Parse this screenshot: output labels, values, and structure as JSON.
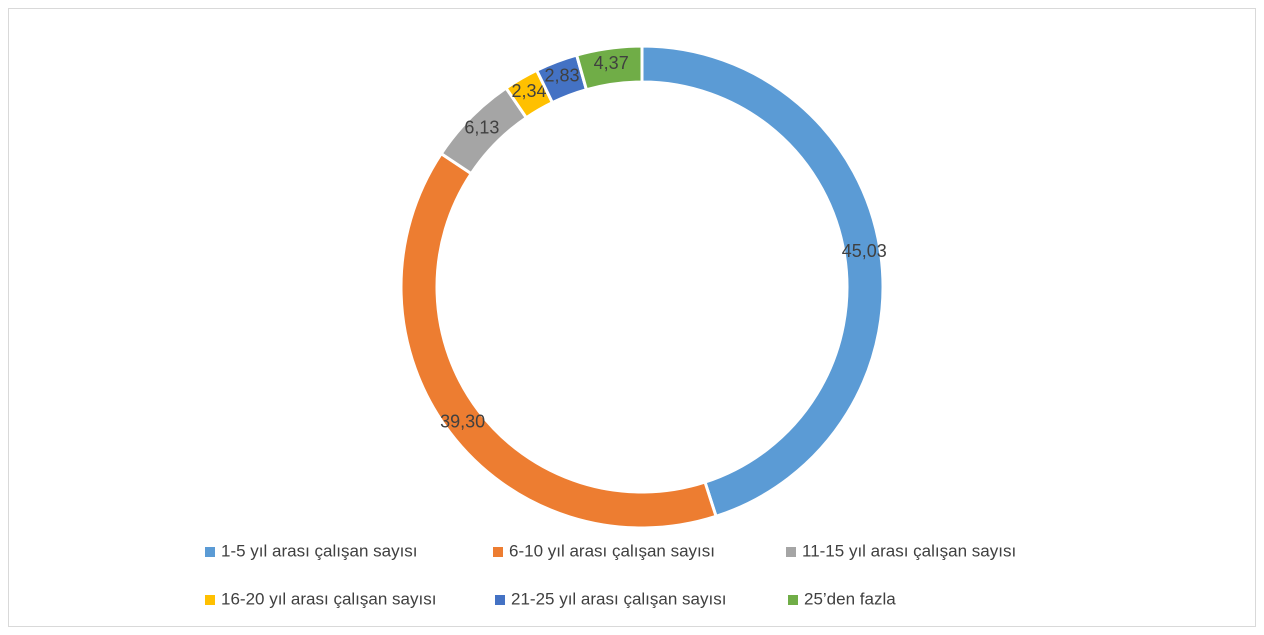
{
  "chart_data": {
    "type": "donut",
    "categories": [
      "1-5 yıl arası çalışan sayısı",
      "6-10 yıl arası çalışan sayısı",
      "11-15 yıl arası çalışan sayısı",
      "16-20 yıl arası çalışan sayısı",
      "21-25 yıl arası çalışan sayısı",
      "25’den fazla"
    ],
    "values": [
      45.03,
      39.3,
      6.13,
      2.34,
      2.83,
      4.37
    ],
    "value_labels": [
      "45,03",
      "39,30",
      "6,13",
      "2,34",
      "2,83",
      "4,37"
    ],
    "colors": [
      "#5b9bd5",
      "#ed7d31",
      "#a5a5a5",
      "#ffc000",
      "#4472c4",
      "#70ad47"
    ],
    "legend": "bottom"
  }
}
